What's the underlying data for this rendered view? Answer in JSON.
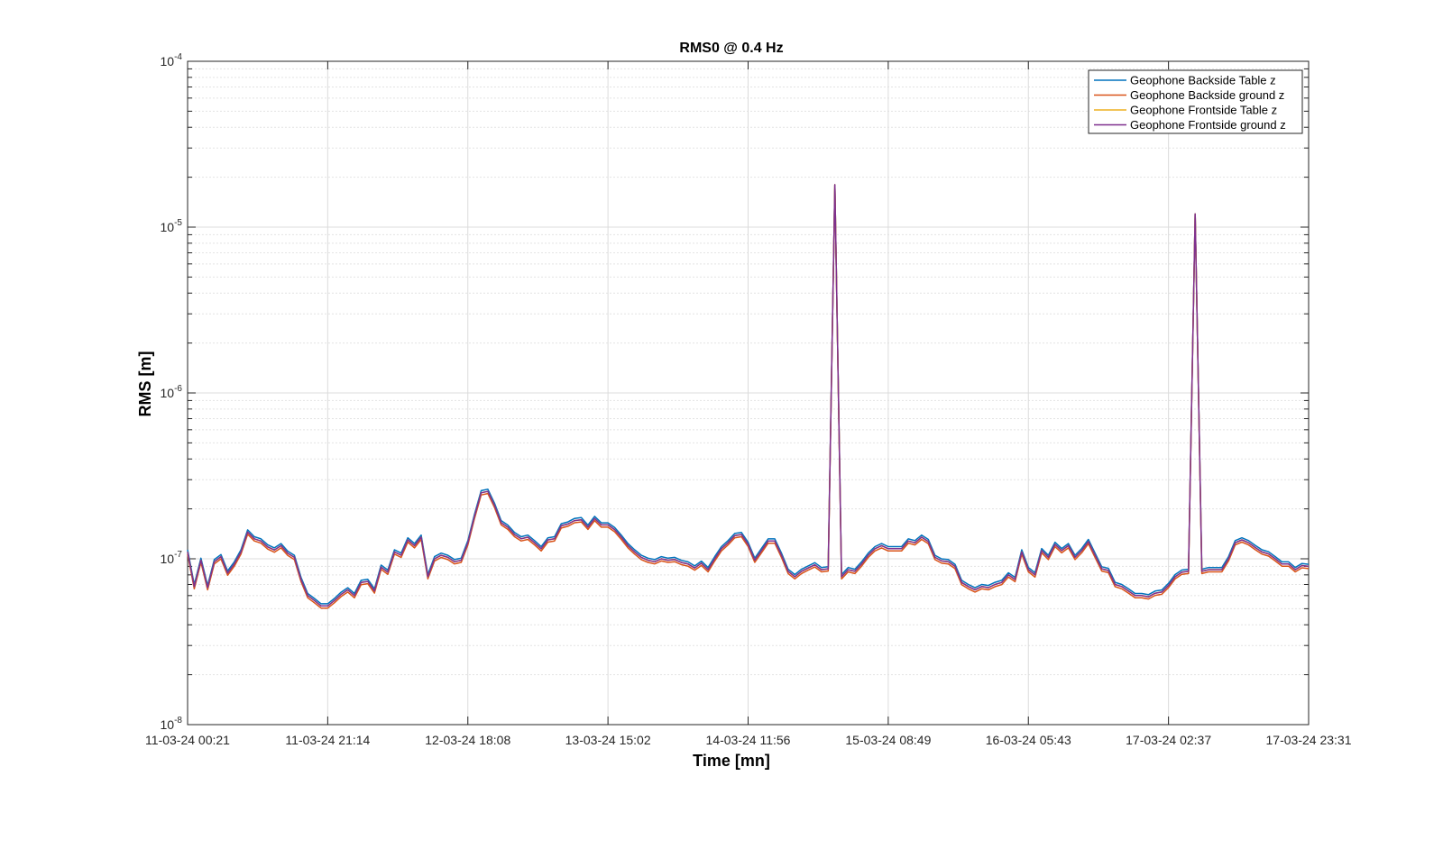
{
  "chart_data": {
    "type": "line",
    "title": "RMS0 @ 0.4 Hz",
    "xlabel": "Time [mn]",
    "ylabel": "RMS [m]",
    "yscale": "log",
    "ylim": [
      1e-08,
      0.0001
    ],
    "yticks": [
      {
        "mantissa": "10",
        "exp": "-8",
        "value": 1e-08
      },
      {
        "mantissa": "10",
        "exp": "-7",
        "value": 1e-07
      },
      {
        "mantissa": "10",
        "exp": "-6",
        "value": 1e-06
      },
      {
        "mantissa": "10",
        "exp": "-5",
        "value": 1e-05
      },
      {
        "mantissa": "10",
        "exp": "-4",
        "value": 0.0001
      }
    ],
    "xlim": [
      "11-03-24 00:21",
      "17-03-24 23:31"
    ],
    "xticks": [
      "11-03-24 00:21",
      "11-03-24 21:14",
      "12-03-24 18:08",
      "13-03-24 15:02",
      "14-03-24 11:56",
      "15-03-24 08:49",
      "16-03-24 05:43",
      "17-03-24 02:37",
      "17-03-24 23:31"
    ],
    "grid": true,
    "minor_grid_y": true,
    "legend_position": "top-right",
    "base_y": [
      1.1e-07,
      6.8e-08,
      9.8e-08,
      6.7e-08,
      9.6e-08,
      1.03e-07,
      8.2e-08,
      9.3e-08,
      1.1e-07,
      1.45e-07,
      1.32e-07,
      1.28e-07,
      1.18e-07,
      1.13e-07,
      1.2e-07,
      1.08e-07,
      1.02e-07,
      7.5e-08,
      6e-08,
      5.6e-08,
      5.2e-08,
      5.2e-08,
      5.6e-08,
      6.1e-08,
      6.5e-08,
      6e-08,
      7.2e-08,
      7.3e-08,
      6.4e-08,
      8.9e-08,
      8.3e-08,
      1.1e-07,
      1.05e-07,
      1.3e-07,
      1.2e-07,
      1.35e-07,
      7.8e-08,
      1e-07,
      1.05e-07,
      1.02e-07,
      9.6e-08,
      9.8e-08,
      1.25e-07,
      1.8e-07,
      2.5e-07,
      2.55e-07,
      2.1e-07,
      1.65e-07,
      1.55e-07,
      1.4e-07,
      1.32e-07,
      1.35e-07,
      1.25e-07,
      1.15e-07,
      1.3e-07,
      1.32e-07,
      1.58e-07,
      1.62e-07,
      1.7e-07,
      1.72e-07,
      1.55e-07,
      1.75e-07,
      1.6e-07,
      1.6e-07,
      1.5e-07,
      1.35e-07,
      1.2e-07,
      1.1e-07,
      1.02e-07,
      9.8e-08,
      9.6e-08,
      1e-07,
      9.8e-08,
      9.9e-08,
      9.5e-08,
      9.3e-08,
      8.8e-08,
      9.4e-08,
      8.6e-08,
      1e-07,
      1.15e-07,
      1.25e-07,
      1.38e-07,
      1.4e-07,
      1.22e-07,
      9.8e-08,
      1.12e-07,
      1.28e-07,
      1.28e-07,
      1.05e-07,
      8.4e-08,
      7.8e-08,
      8.4e-08,
      8.8e-08,
      9.2e-08,
      8.6e-08,
      8.7e-08,
      1.8e-05,
      7.8e-08,
      8.6e-08,
      8.4e-08,
      9.3e-08,
      1.05e-07,
      1.15e-07,
      1.2e-07,
      1.15e-07,
      1.15e-07,
      1.15e-07,
      1.28e-07,
      1.25e-07,
      1.35e-07,
      1.27e-07,
      1.02e-07,
      9.7e-08,
      9.6e-08,
      9e-08,
      7.2e-08,
      6.8e-08,
      6.5e-08,
      6.8e-08,
      6.7e-08,
      7e-08,
      7.2e-08,
      8e-08,
      7.5e-08,
      1.1e-07,
      8.6e-08,
      8e-08,
      1.12e-07,
      1.02e-07,
      1.22e-07,
      1.12e-07,
      1.2e-07,
      1.02e-07,
      1.12e-07,
      1.27e-07,
      1.05e-07,
      8.7e-08,
      8.5e-08,
      7e-08,
      6.8e-08,
      6.4e-08,
      6e-08,
      6e-08,
      5.9e-08,
      6.2e-08,
      6.3e-08,
      6.9e-08,
      7.8e-08,
      8.3e-08,
      8.4e-08,
      1.2e-05,
      8.4e-08,
      8.6e-08,
      8.6e-08,
      8.6e-08,
      1e-07,
      1.25e-07,
      1.3e-07,
      1.25e-07,
      1.17e-07,
      1.1e-07,
      1.07e-07,
      1e-07,
      9.3e-08,
      9.3e-08,
      8.6e-08,
      9.1e-08,
      9e-08
    ],
    "series": [
      {
        "name": "Geophone Backside Table z",
        "color": "#0072BD",
        "scale": 1.03
      },
      {
        "name": "Geophone Backside ground z",
        "color": "#D95319",
        "scale": 0.97
      },
      {
        "name": "Geophone Frontside Table z",
        "color": "#EDB120",
        "scale": 1.0
      },
      {
        "name": "Geophone Frontside ground z",
        "color": "#7E2F8E",
        "scale": 1.0
      }
    ]
  }
}
